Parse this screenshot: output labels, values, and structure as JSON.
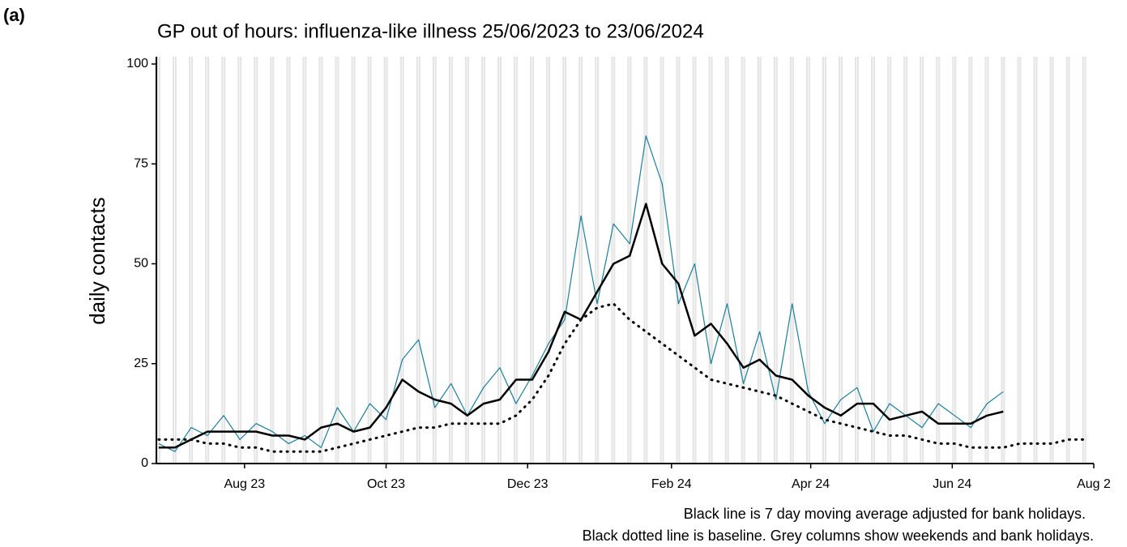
{
  "chart_data": {
    "type": "line",
    "panel_label": "(a)",
    "title": "GP out of hours: influenza-like illness 25/06/2023 to 23/06/2024",
    "y_label": "daily contacts",
    "notes": [
      "Black line is 7 day moving average adjusted for bank holidays.",
      "Black dotted line is baseline. Grey columns show weekends and bank holidays."
    ],
    "x": [
      "2023-06-25",
      "2023-07-02",
      "2023-07-09",
      "2023-07-16",
      "2023-07-23",
      "2023-07-30",
      "2023-08-06",
      "2023-08-13",
      "2023-08-20",
      "2023-08-27",
      "2023-09-03",
      "2023-09-10",
      "2023-09-17",
      "2023-09-24",
      "2023-10-01",
      "2023-10-08",
      "2023-10-15",
      "2023-10-22",
      "2023-10-29",
      "2023-11-05",
      "2023-11-12",
      "2023-11-19",
      "2023-11-26",
      "2023-12-03",
      "2023-12-10",
      "2023-12-17",
      "2023-12-24",
      "2023-12-31",
      "2024-01-07",
      "2024-01-14",
      "2024-01-21",
      "2024-01-28",
      "2024-02-04",
      "2024-02-11",
      "2024-02-18",
      "2024-02-25",
      "2024-03-03",
      "2024-03-10",
      "2024-03-17",
      "2024-03-24",
      "2024-03-31",
      "2024-04-07",
      "2024-04-14",
      "2024-04-21",
      "2024-04-28",
      "2024-05-05",
      "2024-05-12",
      "2024-05-19",
      "2024-05-26",
      "2024-06-02",
      "2024-06-09",
      "2024-06-16",
      "2024-06-23",
      "2024-06-30",
      "2024-07-07",
      "2024-07-14",
      "2024-07-21",
      "2024-07-28"
    ],
    "series": [
      {
        "color": "#1b7f9a",
        "style": "solid",
        "values": [
          5,
          3,
          9,
          7,
          12,
          6,
          10,
          8,
          5,
          7,
          4,
          14,
          8,
          15,
          11,
          26,
          31,
          14,
          20,
          12,
          19,
          24,
          15,
          22,
          30,
          36,
          62,
          40,
          60,
          55,
          82,
          70,
          40,
          50,
          25,
          40,
          20,
          33,
          16,
          40,
          18,
          10,
          16,
          19,
          8,
          15,
          12,
          9,
          15,
          12,
          9,
          15,
          18,
          null,
          null,
          null,
          null,
          null
        ]
      },
      {
        "color": "#000000",
        "style": "solid",
        "values": [
          4,
          4,
          6,
          8,
          8,
          8,
          8,
          7,
          7,
          6,
          9,
          10,
          8,
          9,
          14,
          21,
          18,
          16,
          15,
          12,
          15,
          16,
          21,
          21,
          28,
          38,
          36,
          43,
          50,
          52,
          65,
          50,
          45,
          32,
          35,
          30,
          24,
          26,
          22,
          21,
          17,
          14,
          12,
          15,
          15,
          11,
          12,
          13,
          10,
          10,
          10,
          12,
          13,
          null,
          null,
          null,
          null,
          null
        ]
      },
      {
        "color": "#000000",
        "style": "dotted",
        "values": [
          6,
          6,
          6,
          5,
          5,
          4,
          4,
          3,
          3,
          3,
          3,
          4,
          5,
          6,
          7,
          8,
          9,
          9,
          10,
          10,
          10,
          10,
          12,
          16,
          22,
          30,
          36,
          39,
          40,
          36,
          33,
          30,
          27,
          24,
          21,
          20,
          19,
          18,
          17,
          15,
          13,
          11,
          10,
          9,
          8,
          7,
          7,
          6,
          5,
          5,
          4,
          4,
          4,
          5,
          5,
          5,
          6,
          6
        ]
      }
    ],
    "xlim": [
      "2023-06-24",
      "2024-08-01"
    ],
    "xticks": [
      {
        "value": "2023-08-01",
        "label": "Aug 23"
      },
      {
        "value": "2023-10-01",
        "label": "Oct 23"
      },
      {
        "value": "2023-12-01",
        "label": "Dec 23"
      },
      {
        "value": "2024-02-01",
        "label": "Feb 24"
      },
      {
        "value": "2024-04-01",
        "label": "Apr 24"
      },
      {
        "value": "2024-06-01",
        "label": "Jun 24"
      },
      {
        "value": "2024-08-01",
        "label": "Aug 2"
      }
    ],
    "ylim": [
      0,
      100
    ],
    "yticks": [
      0,
      25,
      50,
      75,
      100
    ],
    "weekend_shading": "#e5e5e5"
  }
}
